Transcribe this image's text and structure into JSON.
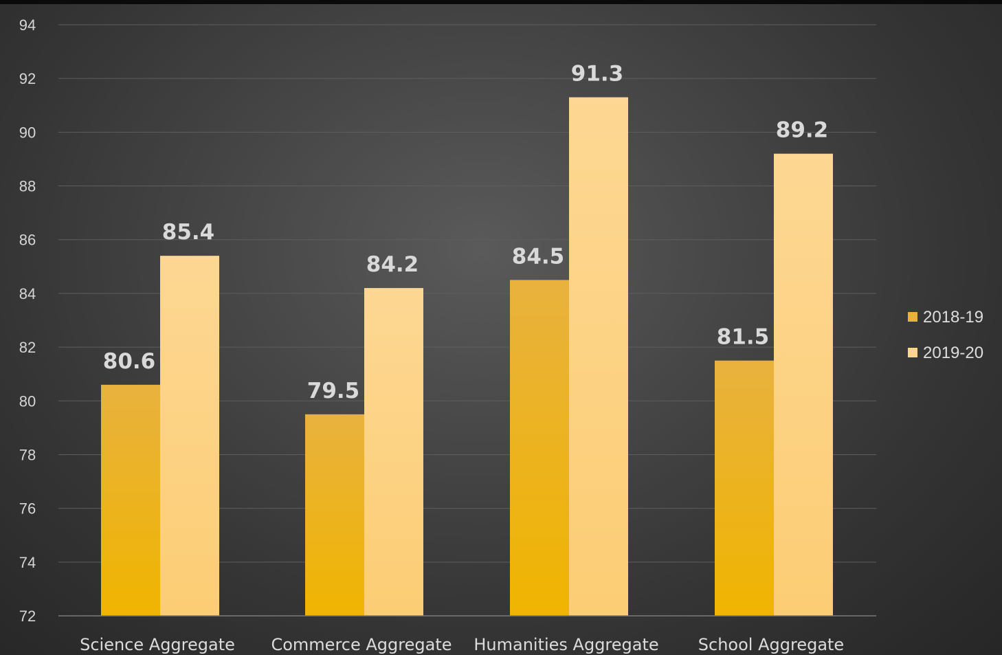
{
  "chart_data": {
    "type": "bar",
    "title": "",
    "xlabel": "",
    "ylabel": "",
    "categories": [
      "Science Aggregate",
      "Commerce Aggregate",
      "Humanities Aggregate",
      "School Aggregate"
    ],
    "series": [
      {
        "name": "2018-19",
        "values": [
          80.6,
          79.5,
          84.5,
          81.5
        ],
        "color": "#e9b03a"
      },
      {
        "name": "2019-20",
        "values": [
          85.4,
          84.2,
          91.3,
          89.2
        ],
        "color": "#fdd58e"
      }
    ],
    "ylim": [
      72,
      94
    ],
    "yticks": [
      72,
      74,
      76,
      78,
      80,
      82,
      84,
      86,
      88,
      90,
      92,
      94
    ],
    "grid": true,
    "legend": "right",
    "data_labels": true
  }
}
